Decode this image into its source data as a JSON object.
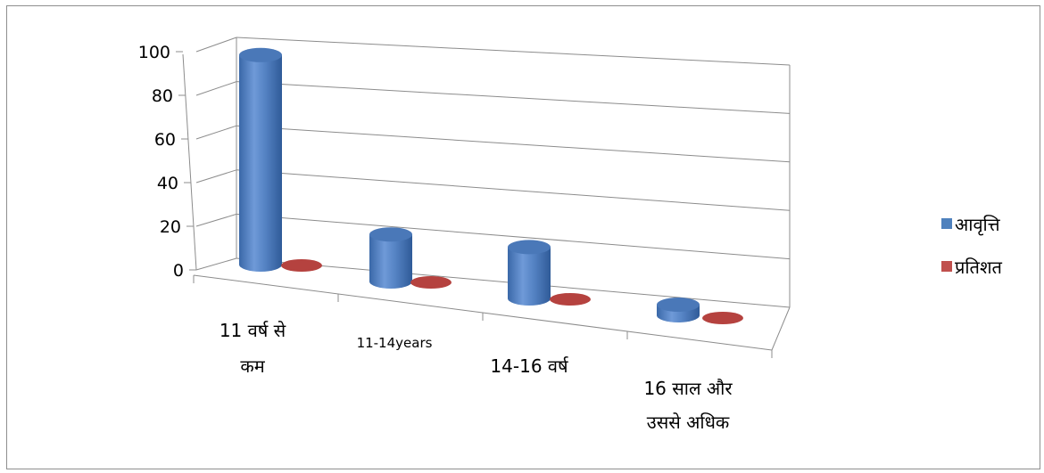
{
  "chart_data": {
    "type": "bar",
    "categories": [
      [
        "11 वर्ष से",
        "कम"
      ],
      [
        "11-14years"
      ],
      [
        "14-16 वर्ष"
      ],
      [
        "16 साल और",
        "उससे अधिक"
      ]
    ],
    "series": [
      {
        "name": "आवृत्ति",
        "color": "#4f81bd",
        "values": [
          98,
          22,
          24,
          5
        ]
      },
      {
        "name": "प्रतिशत",
        "color": "#c0504d",
        "values": [
          0,
          0,
          0,
          0
        ]
      }
    ],
    "ylim": [
      0,
      100
    ],
    "yticks": [
      0,
      20,
      40,
      60,
      80,
      100
    ],
    "grid": true,
    "legend": "right"
  }
}
